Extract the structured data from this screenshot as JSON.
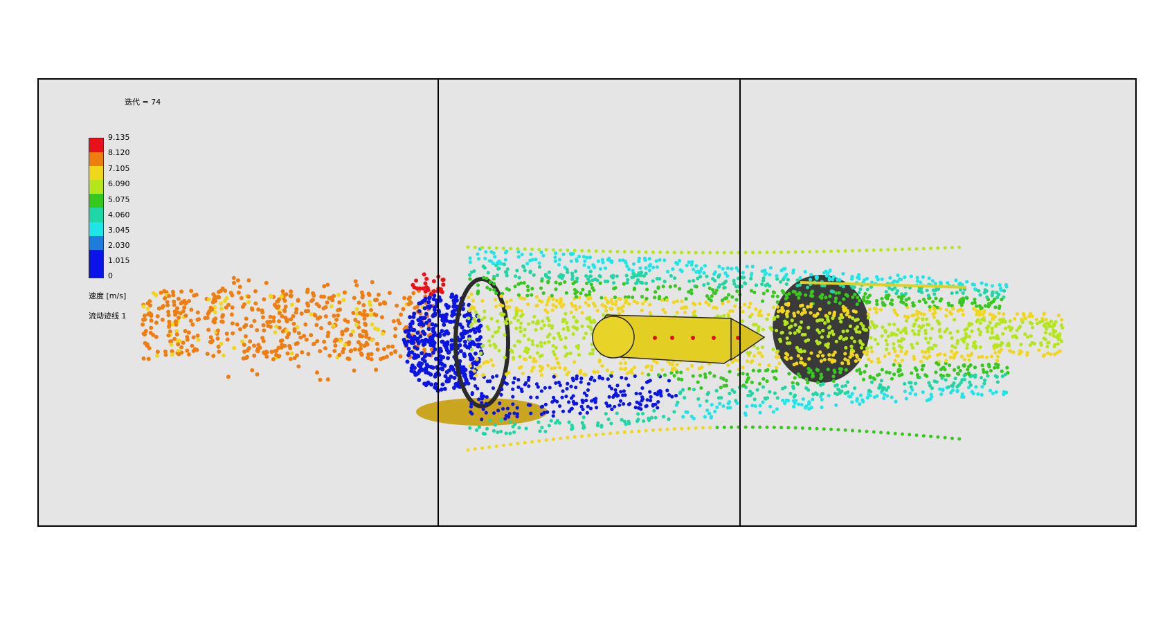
{
  "view": {
    "iteration_label": "迭代 = 74",
    "legend": {
      "ticks": [
        "9.135",
        "8.120",
        "7.105",
        "6.090",
        "5.075",
        "4.060",
        "3.045",
        "2.030",
        "1.015",
        "0"
      ],
      "colors": [
        "#e8101a",
        "#f07d10",
        "#f0d71a",
        "#b4e61a",
        "#37c81e",
        "#1ed7a5",
        "#1ee6e6",
        "#1e7ddc",
        "#0a14e6"
      ],
      "unit_label": "速度 [m/s]",
      "trace_label": "流动迹线 1"
    },
    "background": "#e5e5e5"
  }
}
